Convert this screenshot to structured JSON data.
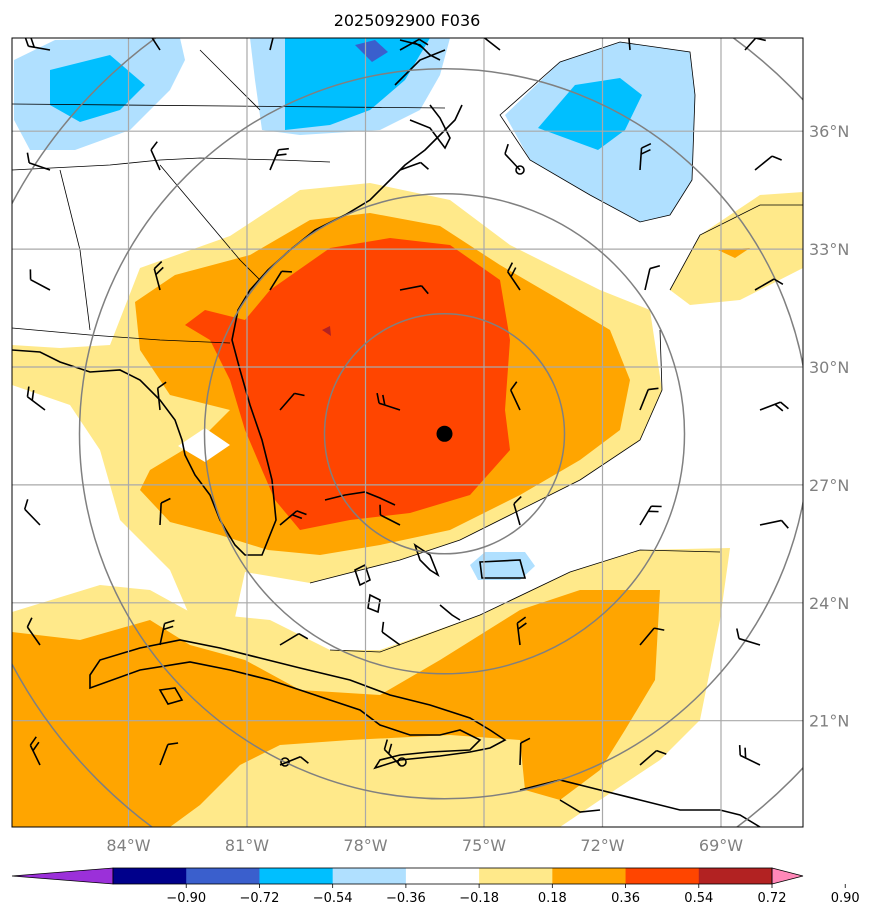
{
  "title": "2025092900 F036",
  "storm_center": {
    "lon": -76.0,
    "lat": 28.3
  },
  "lon_ticks": [
    {
      "lon": -84,
      "label": "84°W"
    },
    {
      "lon": -81,
      "label": "81°W"
    },
    {
      "lon": -78,
      "label": "78°W"
    },
    {
      "lon": -75,
      "label": "75°W"
    },
    {
      "lon": -72,
      "label": "72°W"
    },
    {
      "lon": -69,
      "label": "69°W"
    }
  ],
  "lat_ticks": [
    {
      "lat": 36,
      "label": "36°N"
    },
    {
      "lat": 33,
      "label": "33°N"
    },
    {
      "lat": 30,
      "label": "30°N"
    },
    {
      "lat": 27,
      "label": "27°N"
    },
    {
      "lat": 24,
      "label": "24°N"
    },
    {
      "lat": 21,
      "label": "21°N"
    }
  ],
  "colorbar": {
    "colors": [
      "#9b30d9",
      "#00008b",
      "#3a5fcd",
      "#00bfff",
      "#b0e0ff",
      "#ffffff",
      "#ffe98a",
      "#ffa500",
      "#ff4500",
      "#b22222",
      "#ff88b8"
    ],
    "ticks": [
      "−0.90",
      "−0.72",
      "−0.54",
      "−0.36",
      "−0.18",
      "0.18",
      "0.36",
      "0.54",
      "0.72",
      "0.90"
    ]
  },
  "colors": {
    "blue_light": "#b0e0ff",
    "blue_mid": "#00bfff",
    "blue_dark": "#3a5fcd",
    "yellow": "#ffe98a",
    "orange": "#ffa500",
    "red": "#ff4500",
    "darkred": "#b22222",
    "grid": "#a9a9a9",
    "ring": "#808080"
  }
}
